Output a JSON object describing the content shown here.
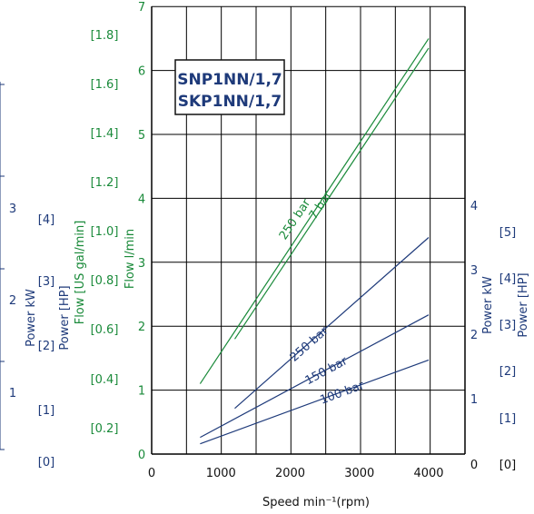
{
  "chart_data": {
    "type": "line",
    "model_labels": [
      "SNP1NN/1,7",
      "SKP1NN/1,7"
    ],
    "xlabel": "Speed min⁻¹(rpm)",
    "x_ticks": [
      "0",
      "1000",
      "2000",
      "3000",
      "4000"
    ],
    "xlim": [
      0,
      4000
    ],
    "flow_axis": {
      "label": "Flow  l/min",
      "label_us": "Flow [US gal/min]",
      "ticks": [
        "0",
        "1",
        "2",
        "3",
        "4",
        "5",
        "6",
        "7"
      ],
      "ticks_us": [
        "[0.2]",
        "[0.4]",
        "[0.6]",
        "[0.8]",
        "[1.0]",
        "[1.2]",
        "[1.4]",
        "[1.6]",
        "[1.8]"
      ],
      "ylim": [
        0,
        7
      ],
      "color": "#1a8a3a"
    },
    "power_axis": {
      "label_kw": "Power  kW",
      "label_hp": "Power [HP]",
      "ticks_kw": [
        "1",
        "2",
        "3",
        "4"
      ],
      "ticks_hp": [
        "[0]",
        "[1]",
        "[2]",
        "[3]",
        "[4]",
        "[5]"
      ],
      "ticks_kw_left": [
        "1",
        "2",
        "3"
      ],
      "ticks_hp_left": [
        "[0]",
        "[1]",
        "[2]",
        "[3]",
        "[4]"
      ],
      "right_zero": "0",
      "ylim_kw": [
        0,
        4
      ],
      "color": "#1e3a7a"
    },
    "series": [
      {
        "name": "7 bar",
        "axis": "flow",
        "color": "#1a8a3a",
        "x": [
          700,
          4000
        ],
        "y": [
          1.1,
          6.5
        ]
      },
      {
        "name": "250 bar",
        "axis": "flow",
        "color": "#1a8a3a",
        "x": [
          1200,
          4000
        ],
        "y": [
          1.8,
          6.35
        ]
      },
      {
        "name": "250 bar",
        "axis": "power",
        "color": "#1e3a7a",
        "x": [
          1200,
          4000
        ],
        "y": [
          0.85,
          3.5
        ]
      },
      {
        "name": "150 bar",
        "axis": "power",
        "color": "#1e3a7a",
        "x": [
          700,
          4000
        ],
        "y": [
          0.4,
          2.3
        ]
      },
      {
        "name": "100 bar",
        "axis": "power",
        "color": "#1e3a7a",
        "x": [
          700,
          4000
        ],
        "y": [
          0.3,
          1.6
        ]
      }
    ],
    "grid": true,
    "gridline_style": "black"
  }
}
